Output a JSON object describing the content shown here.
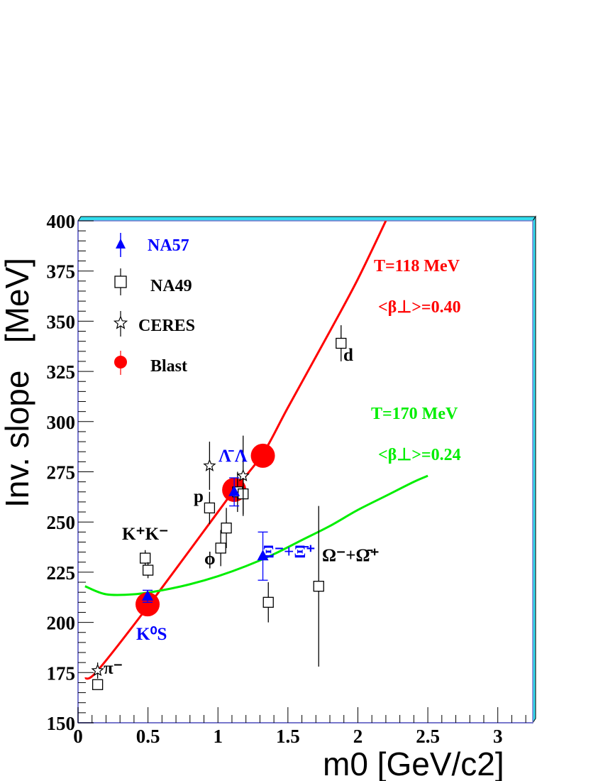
{
  "chart_data": {
    "type": "scatter",
    "xlabel": "m0 [GeV/c2]",
    "ylabel": "Inv. slope   [MeV]",
    "xlim": [
      0,
      3.25
    ],
    "ylim": [
      150,
      400
    ],
    "x_ticks": [
      "0",
      "0.5",
      "1",
      "1.5",
      "2",
      "2.5",
      "3"
    ],
    "y_ticks": [
      "150",
      "175",
      "200",
      "225",
      "250",
      "275",
      "300",
      "325",
      "350",
      "375",
      "400"
    ],
    "legend_placement": "top-left",
    "legend": [
      {
        "name": "NA57",
        "marker": "filled-triangle",
        "color": "#0000ff"
      },
      {
        "name": "NA49",
        "marker": "open-square",
        "color": "#000000"
      },
      {
        "name": "CERES",
        "marker": "open-star",
        "color": "#000000"
      },
      {
        "name": "Blast",
        "marker": "filled-circle",
        "color": "#ff0000"
      }
    ],
    "series": [
      {
        "name": "NA57",
        "color": "#0000ff",
        "points": [
          {
            "x": 0.497,
            "y": 213,
            "err": 3
          },
          {
            "x": 1.116,
            "y": 265,
            "err": 7
          },
          {
            "x": 1.321,
            "y": 233,
            "err": 12
          }
        ]
      },
      {
        "name": "NA49",
        "color": "#000000",
        "points": [
          {
            "x": 0.14,
            "y": 169,
            "err": 2
          },
          {
            "x": 0.48,
            "y": 232,
            "err": 4
          },
          {
            "x": 0.5,
            "y": 226,
            "err": 4
          },
          {
            "x": 0.94,
            "y": 257,
            "err": 8
          },
          {
            "x": 1.02,
            "y": 237,
            "err": 9
          },
          {
            "x": 1.06,
            "y": 247,
            "err": 10
          },
          {
            "x": 1.14,
            "y": 265,
            "err": 10
          },
          {
            "x": 1.18,
            "y": 264,
            "err": 10
          },
          {
            "x": 1.36,
            "y": 210,
            "err": 10
          },
          {
            "x": 1.72,
            "y": 218,
            "err": 40
          },
          {
            "x": 1.88,
            "y": 339,
            "err": 9
          }
        ]
      },
      {
        "name": "CERES",
        "color": "#000000",
        "points": [
          {
            "x": 0.14,
            "y": 176,
            "err": 4
          },
          {
            "x": 0.94,
            "y": 278,
            "err": 12
          },
          {
            "x": 1.18,
            "y": 273,
            "err": 20
          }
        ]
      },
      {
        "name": "Blast",
        "color": "#ff0000",
        "points": [
          {
            "x": 0.497,
            "y": 209
          },
          {
            "x": 1.116,
            "y": 266
          },
          {
            "x": 1.321,
            "y": 283
          }
        ]
      }
    ],
    "curves": [
      {
        "color": "#ff0000",
        "label_T": "T=118 MeV",
        "label_beta": "<β⊥>=0.40",
        "points": [
          [
            0.05,
            172
          ],
          [
            0.14,
            176
          ],
          [
            0.5,
            208
          ],
          [
            1.0,
            255
          ],
          [
            1.116,
            266
          ],
          [
            1.321,
            284
          ],
          [
            1.5,
            307
          ],
          [
            1.8,
            345
          ],
          [
            2.0,
            371
          ],
          [
            2.2,
            400
          ]
        ]
      },
      {
        "color": "#00ee00",
        "label_T": "T=170 MeV",
        "label_beta": "<β⊥>=0.24",
        "points": [
          [
            0.05,
            218
          ],
          [
            0.2,
            214
          ],
          [
            0.4,
            214
          ],
          [
            0.6,
            216
          ],
          [
            0.8,
            219
          ],
          [
            1.0,
            223
          ],
          [
            1.2,
            228
          ],
          [
            1.4,
            234
          ],
          [
            1.6,
            241
          ],
          [
            1.8,
            248
          ],
          [
            2.0,
            256
          ],
          [
            2.2,
            263
          ],
          [
            2.4,
            270
          ],
          [
            2.5,
            273
          ]
        ]
      }
    ],
    "annotations": [
      {
        "text": "π⁻",
        "color": "#000000"
      },
      {
        "text": "K⁺K⁻",
        "color": "#000000"
      },
      {
        "text": "p",
        "color": "#000000"
      },
      {
        "text": "ϕ",
        "color": "#000000"
      },
      {
        "text": "Λ̄ Λ",
        "color": "#0000ff"
      },
      {
        "text": "Ξ⁻+Ξ̄⁺",
        "color": "#0000ff"
      },
      {
        "text": "Ω⁻+Ω̄⁺",
        "color": "#000000"
      },
      {
        "text": "d",
        "color": "#000000"
      },
      {
        "text": "K⁰S",
        "color": "#0000ff"
      }
    ]
  }
}
